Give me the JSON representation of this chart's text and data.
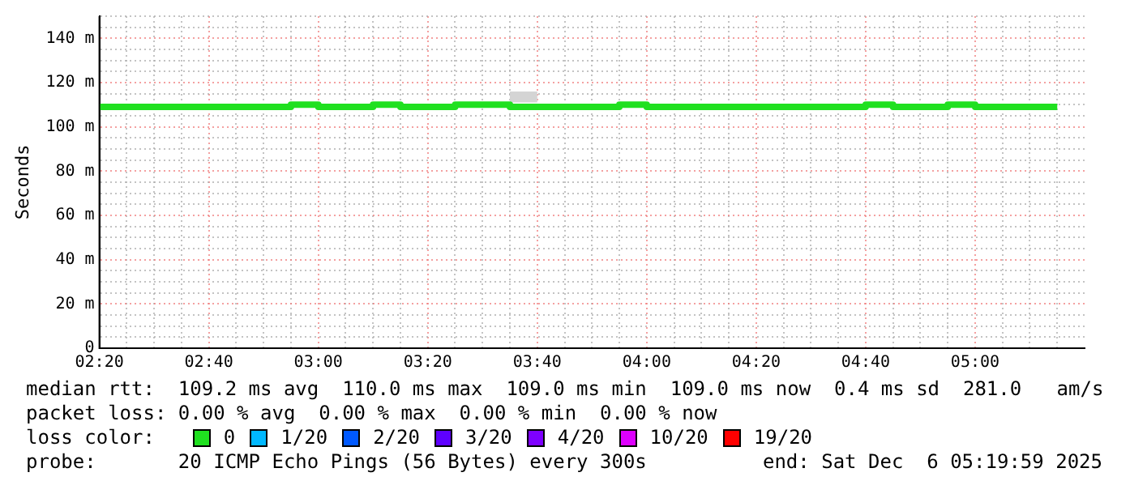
{
  "chart_data": {
    "type": "step",
    "ylabel": "Seconds",
    "legend_title": "loss color:",
    "legend": "bottom",
    "grid": true,
    "x": [
      "2025-12-06T02:20",
      "2025-12-06T02:25",
      "2025-12-06T02:30",
      "2025-12-06T02:35",
      "2025-12-06T02:40",
      "2025-12-06T02:45",
      "2025-12-06T02:50",
      "2025-12-06T02:55",
      "2025-12-06T03:00",
      "2025-12-06T03:05",
      "2025-12-06T03:10",
      "2025-12-06T03:15",
      "2025-12-06T03:20",
      "2025-12-06T03:25",
      "2025-12-06T03:30",
      "2025-12-06T03:35",
      "2025-12-06T03:40",
      "2025-12-06T03:45",
      "2025-12-06T03:50",
      "2025-12-06T03:55",
      "2025-12-06T04:00",
      "2025-12-06T04:05",
      "2025-12-06T04:10",
      "2025-12-06T04:15",
      "2025-12-06T04:20",
      "2025-12-06T04:25",
      "2025-12-06T04:30",
      "2025-12-06T04:35",
      "2025-12-06T04:40",
      "2025-12-06T04:45",
      "2025-12-06T04:50",
      "2025-12-06T04:55",
      "2025-12-06T05:00",
      "2025-12-06T05:05",
      "2025-12-06T05:10",
      "2025-12-06T05:15"
    ],
    "series": [
      {
        "name": "0",
        "color": "#20e020",
        "values": [
          109,
          109,
          109,
          109,
          109,
          109,
          109,
          109,
          110,
          109,
          109,
          110,
          109,
          109,
          110,
          110,
          109,
          109,
          109,
          109,
          110,
          109,
          109,
          109,
          109,
          109,
          109,
          109,
          109,
          110,
          109,
          109,
          110,
          109,
          109,
          109
        ],
        "lower": [
          null,
          null,
          null,
          null,
          null,
          null,
          null,
          null,
          null,
          null,
          null,
          null,
          null,
          null,
          null,
          111,
          111,
          null,
          null,
          null,
          null,
          null,
          null,
          null,
          null,
          null,
          null,
          null,
          null,
          null,
          null,
          null,
          null,
          null,
          null,
          null
        ],
        "upper": [
          null,
          null,
          null,
          null,
          null,
          null,
          null,
          null,
          null,
          null,
          null,
          null,
          null,
          null,
          null,
          116,
          116,
          null,
          null,
          null,
          null,
          null,
          null,
          null,
          null,
          null,
          null,
          null,
          null,
          null,
          null,
          null,
          null,
          null,
          null,
          null
        ]
      },
      {
        "name": "1/20",
        "color": "#00b8ff",
        "values": [
          null,
          null,
          null,
          null,
          null,
          null,
          null,
          null,
          null,
          null,
          null,
          null,
          null,
          null,
          null,
          null,
          null,
          null,
          null,
          null,
          null,
          null,
          null,
          null,
          null,
          null,
          null,
          null,
          null,
          null,
          null,
          null,
          null,
          null,
          null,
          null
        ]
      },
      {
        "name": "2/20",
        "color": "#0059ff",
        "values": [
          null,
          null,
          null,
          null,
          null,
          null,
          null,
          null,
          null,
          null,
          null,
          null,
          null,
          null,
          null,
          null,
          null,
          null,
          null,
          null,
          null,
          null,
          null,
          null,
          null,
          null,
          null,
          null,
          null,
          null,
          null,
          null,
          null,
          null,
          null,
          null
        ]
      },
      {
        "name": "3/20",
        "color": "#5e00ff",
        "values": [
          null,
          null,
          null,
          null,
          null,
          null,
          null,
          null,
          null,
          null,
          null,
          null,
          null,
          null,
          null,
          null,
          null,
          null,
          null,
          null,
          null,
          null,
          null,
          null,
          null,
          null,
          null,
          null,
          null,
          null,
          null,
          null,
          null,
          null,
          null,
          null
        ]
      },
      {
        "name": "4/20",
        "color": "#7e00ff",
        "values": [
          null,
          null,
          null,
          null,
          null,
          null,
          null,
          null,
          null,
          null,
          null,
          null,
          null,
          null,
          null,
          null,
          null,
          null,
          null,
          null,
          null,
          null,
          null,
          null,
          null,
          null,
          null,
          null,
          null,
          null,
          null,
          null,
          null,
          null,
          null,
          null
        ]
      },
      {
        "name": "10/20",
        "color": "#dd00ff",
        "values": [
          null,
          null,
          null,
          null,
          null,
          null,
          null,
          null,
          null,
          null,
          null,
          null,
          null,
          null,
          null,
          null,
          null,
          null,
          null,
          null,
          null,
          null,
          null,
          null,
          null,
          null,
          null,
          null,
          null,
          null,
          null,
          null,
          null,
          null,
          null,
          null
        ]
      },
      {
        "name": "19/20",
        "color": "#ff0000",
        "values": [
          null,
          null,
          null,
          null,
          null,
          null,
          null,
          null,
          null,
          null,
          null,
          null,
          null,
          null,
          null,
          null,
          null,
          null,
          null,
          null,
          null,
          null,
          null,
          null,
          null,
          null,
          null,
          null,
          null,
          null,
          null,
          null,
          null,
          null,
          null,
          null
        ]
      }
    ],
    "xlim": [
      "2025-12-06T02:20",
      "2025-12-06T05:20"
    ],
    "xticks": [
      {
        "value": "2025-12-06T02:20",
        "label": "02:20"
      },
      {
        "value": "2025-12-06T02:25",
        "label": null
      },
      {
        "value": "2025-12-06T02:30",
        "label": null
      },
      {
        "value": "2025-12-06T02:35",
        "label": null
      },
      {
        "value": "2025-12-06T02:40",
        "label": "02:40"
      },
      {
        "value": "2025-12-06T02:45",
        "label": null
      },
      {
        "value": "2025-12-06T02:50",
        "label": null
      },
      {
        "value": "2025-12-06T02:55",
        "label": null
      },
      {
        "value": "2025-12-06T03:00",
        "label": "03:00"
      },
      {
        "value": "2025-12-06T03:05",
        "label": null
      },
      {
        "value": "2025-12-06T03:10",
        "label": null
      },
      {
        "value": "2025-12-06T03:15",
        "label": null
      },
      {
        "value": "2025-12-06T03:20",
        "label": "03:20"
      },
      {
        "value": "2025-12-06T03:25",
        "label": null
      },
      {
        "value": "2025-12-06T03:30",
        "label": null
      },
      {
        "value": "2025-12-06T03:35",
        "label": null
      },
      {
        "value": "2025-12-06T03:40",
        "label": "03:40"
      },
      {
        "value": "2025-12-06T03:45",
        "label": null
      },
      {
        "value": "2025-12-06T03:50",
        "label": null
      },
      {
        "value": "2025-12-06T03:55",
        "label": null
      },
      {
        "value": "2025-12-06T04:00",
        "label": "04:00"
      },
      {
        "value": "2025-12-06T04:05",
        "label": null
      },
      {
        "value": "2025-12-06T04:10",
        "label": null
      },
      {
        "value": "2025-12-06T04:15",
        "label": null
      },
      {
        "value": "2025-12-06T04:20",
        "label": "04:20"
      },
      {
        "value": "2025-12-06T04:25",
        "label": null
      },
      {
        "value": "2025-12-06T04:30",
        "label": null
      },
      {
        "value": "2025-12-06T04:35",
        "label": null
      },
      {
        "value": "2025-12-06T04:40",
        "label": "04:40"
      },
      {
        "value": "2025-12-06T04:45",
        "label": null
      },
      {
        "value": "2025-12-06T04:50",
        "label": null
      },
      {
        "value": "2025-12-06T04:55",
        "label": null
      },
      {
        "value": "2025-12-06T05:00",
        "label": "05:00"
      },
      {
        "value": "2025-12-06T05:05",
        "label": null
      },
      {
        "value": "2025-12-06T05:10",
        "label": null
      },
      {
        "value": "2025-12-06T05:15",
        "label": null
      }
    ],
    "ylim": [
      0,
      150
    ],
    "yticks": [
      {
        "value": 0,
        "label": "0"
      },
      {
        "value": 5,
        "label": null
      },
      {
        "value": 10,
        "label": null
      },
      {
        "value": 15,
        "label": null
      },
      {
        "value": 20,
        "label": "20 m"
      },
      {
        "value": 25,
        "label": null
      },
      {
        "value": 30,
        "label": null
      },
      {
        "value": 35,
        "label": null
      },
      {
        "value": 40,
        "label": "40 m"
      },
      {
        "value": 45,
        "label": null
      },
      {
        "value": 50,
        "label": null
      },
      {
        "value": 55,
        "label": null
      },
      {
        "value": 60,
        "label": "60 m"
      },
      {
        "value": 65,
        "label": null
      },
      {
        "value": 70,
        "label": null
      },
      {
        "value": 75,
        "label": null
      },
      {
        "value": 80,
        "label": "80 m"
      },
      {
        "value": 85,
        "label": null
      },
      {
        "value": 90,
        "label": null
      },
      {
        "value": 95,
        "label": null
      },
      {
        "value": 100,
        "label": "100 m"
      },
      {
        "value": 105,
        "label": null
      },
      {
        "value": 110,
        "label": null
      },
      {
        "value": 115,
        "label": null
      },
      {
        "value": 120,
        "label": "120 m"
      },
      {
        "value": 125,
        "label": null
      },
      {
        "value": 130,
        "label": null
      },
      {
        "value": 135,
        "label": null
      },
      {
        "value": 140,
        "label": "140 m"
      },
      {
        "value": 145,
        "label": null
      },
      {
        "value": 150,
        "label": null
      }
    ],
    "annotations": [
      "median rtt:  109.2 ms avg  110.0 ms max  109.0 ms min  109.0 ms now  0.4 ms sd  281.0   am/s",
      "packet loss: 0.00 % avg  0.00 % max  0.00 % min  0.00 % now",
      "probe:       20 ICMP Echo Pings (56 Bytes) every 300s",
      "end: Sat Dec  6 05:19:59 2025"
    ]
  }
}
